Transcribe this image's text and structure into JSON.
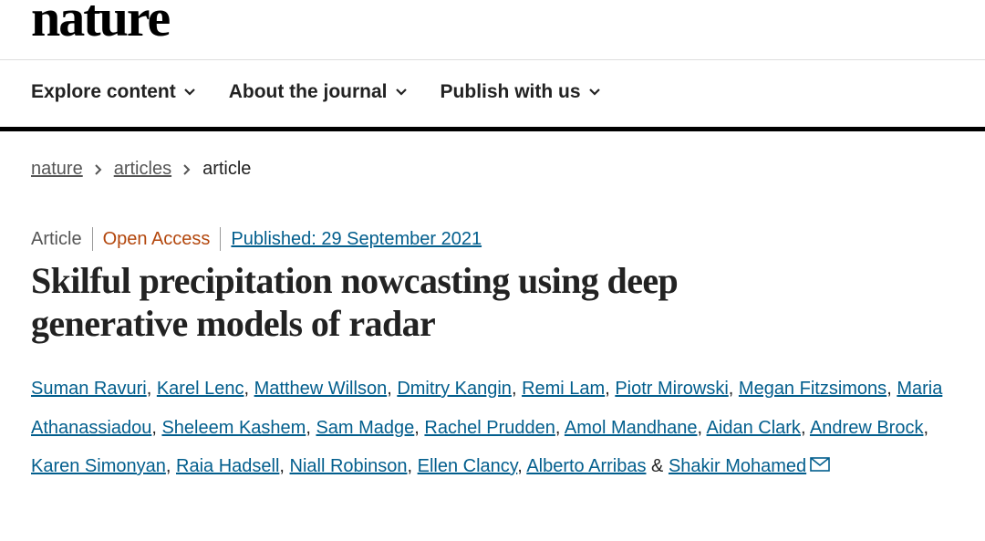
{
  "header": {
    "logo": "nature",
    "nav": [
      "Explore content",
      "About the journal",
      "Publish with us"
    ]
  },
  "breadcrumb": [
    "nature",
    "articles",
    "article"
  ],
  "article": {
    "type": "Article",
    "access": "Open Access",
    "published": "Published: 29 September 2021",
    "title": "Skilful precipitation nowcasting using deep generative models of radar",
    "authors": [
      "Suman Ravuri",
      "Karel Lenc",
      "Matthew Willson",
      "Dmitry Kangin",
      "Remi Lam",
      "Piotr Mirowski",
      "Megan Fitzsimons",
      "Maria Athanassiadou",
      "Sheleem Kashem",
      "Sam Madge",
      "Rachel Prudden",
      "Amol Mandhane",
      "Aidan Clark",
      "Andrew Brock",
      "Karen Simonyan",
      "Raia Hadsell",
      "Niall Robinson",
      "Ellen Clancy",
      "Alberto Arribas",
      "Shakir Mohamed"
    ],
    "author_separator": ",",
    "author_conjunction": "&"
  }
}
